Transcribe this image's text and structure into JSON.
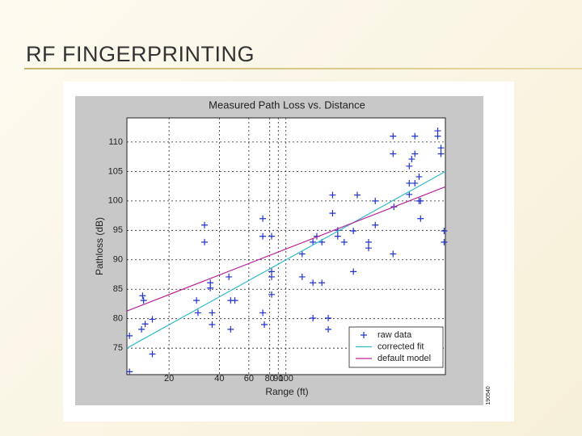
{
  "slide_title": "RF FINGERPRINTING",
  "chart_data": {
    "type": "scatter",
    "title": "Measured Path Loss vs. Distance",
    "xlabel": "Range (ft)",
    "ylabel": "Pathloss (dB)",
    "annotation": "190540",
    "xscale": "log",
    "grid": true,
    "legend": "lower right",
    "xlim": [
      11.2,
      898
    ],
    "ylim": [
      70.5,
      114.1
    ],
    "xticks": [
      20,
      40,
      60,
      80,
      90,
      100
    ],
    "yticks": [
      75,
      80,
      85,
      90,
      95,
      100,
      105,
      110
    ],
    "series": [
      {
        "name": "raw data",
        "color": "#2233cc",
        "mode": "markers",
        "x": [
          11.6,
          11.6,
          13.9,
          14.1,
          13.7,
          14.4,
          15.9,
          15.9,
          29.2,
          29.8,
          32.6,
          32.6,
          35.3,
          35.3,
          36.2,
          36.2,
          45.6,
          46.7,
          46.7,
          49.5,
          72.7,
          72.7,
          72.7,
          74.3,
          82.1,
          82.1,
          82.1,
          82.1,
          125,
          125,
          145,
          145,
          145,
          153,
          164,
          164,
          179,
          179,
          190,
          190,
          204,
          204,
          223,
          253,
          253,
          267,
          312,
          312,
          342,
          342,
          437,
          437,
          437,
          442,
          546,
          546,
          546,
          565,
          590,
          590,
          590,
          625,
          625,
          638,
          638,
          808,
          808,
          845,
          845,
          883,
          883
        ],
        "values": [
          77.1,
          71.0,
          83.9,
          83.1,
          78.2,
          79.1,
          79.9,
          74.0,
          83.1,
          81.0,
          95.9,
          93.0,
          86.1,
          85.2,
          81.0,
          79.0,
          87.1,
          83.1,
          78.2,
          83.1,
          97.0,
          94.0,
          81.0,
          79.0,
          94.0,
          88.0,
          87.1,
          84.1,
          87.1,
          91.0,
          93.0,
          86.1,
          80.1,
          94.0,
          86.1,
          93.0,
          80.1,
          78.2,
          101,
          97.9,
          95.0,
          94.0,
          93.0,
          94.9,
          88.0,
          101,
          93.0,
          92.0,
          100,
          95.9,
          111,
          108,
          91.0,
          99.0,
          105.9,
          103,
          101.1,
          107.1,
          103,
          111,
          108,
          104.1,
          100,
          100,
          97.0,
          111.9,
          111,
          109,
          108,
          94.9,
          93.0
        ]
      },
      {
        "name": "corrected fit",
        "color": "#33bbcc",
        "mode": "line",
        "x": [
          11.2,
          898
        ],
        "values": [
          75,
          105
        ]
      },
      {
        "name": "default model",
        "color": "#bb2299",
        "mode": "line",
        "x": [
          11.2,
          898
        ],
        "values": [
          81.3,
          102.4
        ]
      }
    ]
  }
}
